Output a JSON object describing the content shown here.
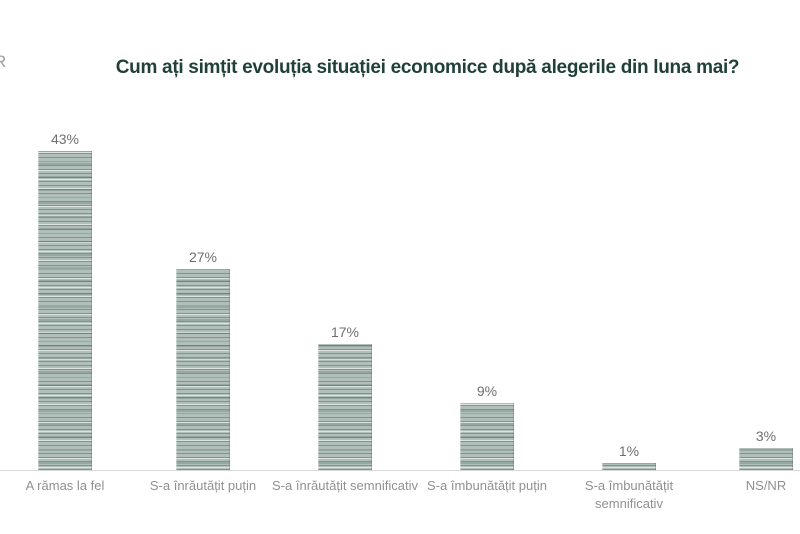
{
  "page": {
    "logo_fragment": "R",
    "background_color": "#ffffff"
  },
  "chart_data": {
    "type": "bar",
    "title": "Cum ați simțit evoluția situației economice după alegerile din luna mai?",
    "title_color": "#21403a",
    "categories": [
      "A rămas la fel",
      "S-a înrăutățit puțin",
      "S-a înrăutățit semnificativ",
      "S-a îmbunătățit puțin",
      "S-a îmbunătățit\nsemnificativ",
      "NS/NR"
    ],
    "values": [
      43,
      27,
      17,
      9,
      1,
      3
    ],
    "value_label_suffix": "%",
    "bar_color": "#b0bfb9",
    "bar_stripe_color": "#7d948c",
    "value_label_color": "#6f6f6f",
    "category_label_color": "#8f9191",
    "xlabel": "",
    "ylabel": "",
    "ylim": [
      0,
      45
    ],
    "grid": false,
    "legend": "none"
  }
}
